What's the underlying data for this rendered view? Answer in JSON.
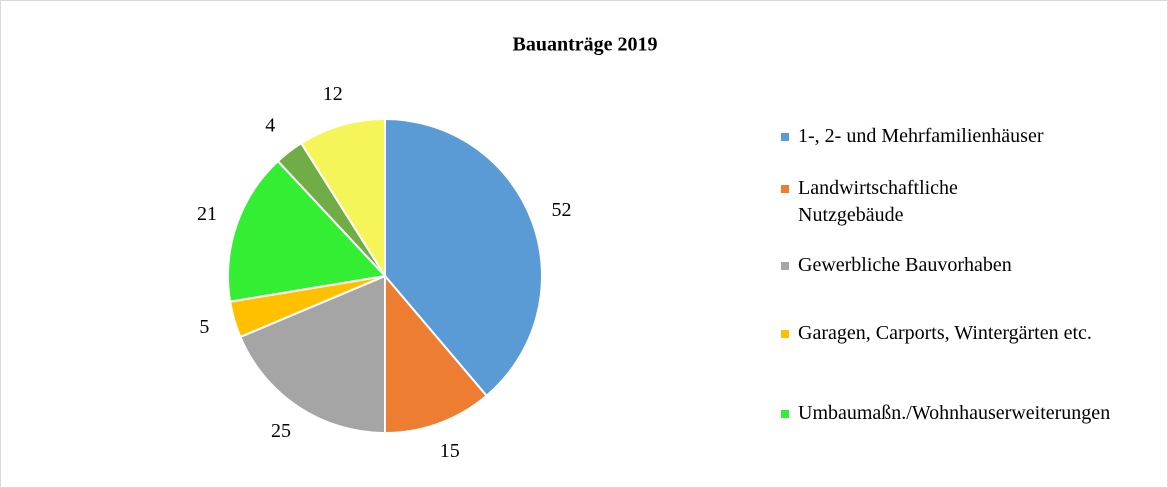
{
  "chart_data": {
    "type": "pie",
    "title": "Bauanträge 2019",
    "categories": [
      "1-, 2- und Mehrfamilienhäuser",
      "Landwirtschaftliche Nutzgebäude",
      "Gewerbliche Bauvorhaben",
      "Garagen, Carports, Wintergärten etc.",
      "Umbaumaßn./Wohnhauserweiterungen",
      null,
      null
    ],
    "values": [
      52,
      15,
      25,
      5,
      21,
      4,
      12
    ],
    "colors": [
      "#5b9bd5",
      "#ed7d31",
      "#a5a5a5",
      "#ffc000",
      "#33ee33",
      "#70ad47",
      "#f5f55a"
    ]
  }
}
